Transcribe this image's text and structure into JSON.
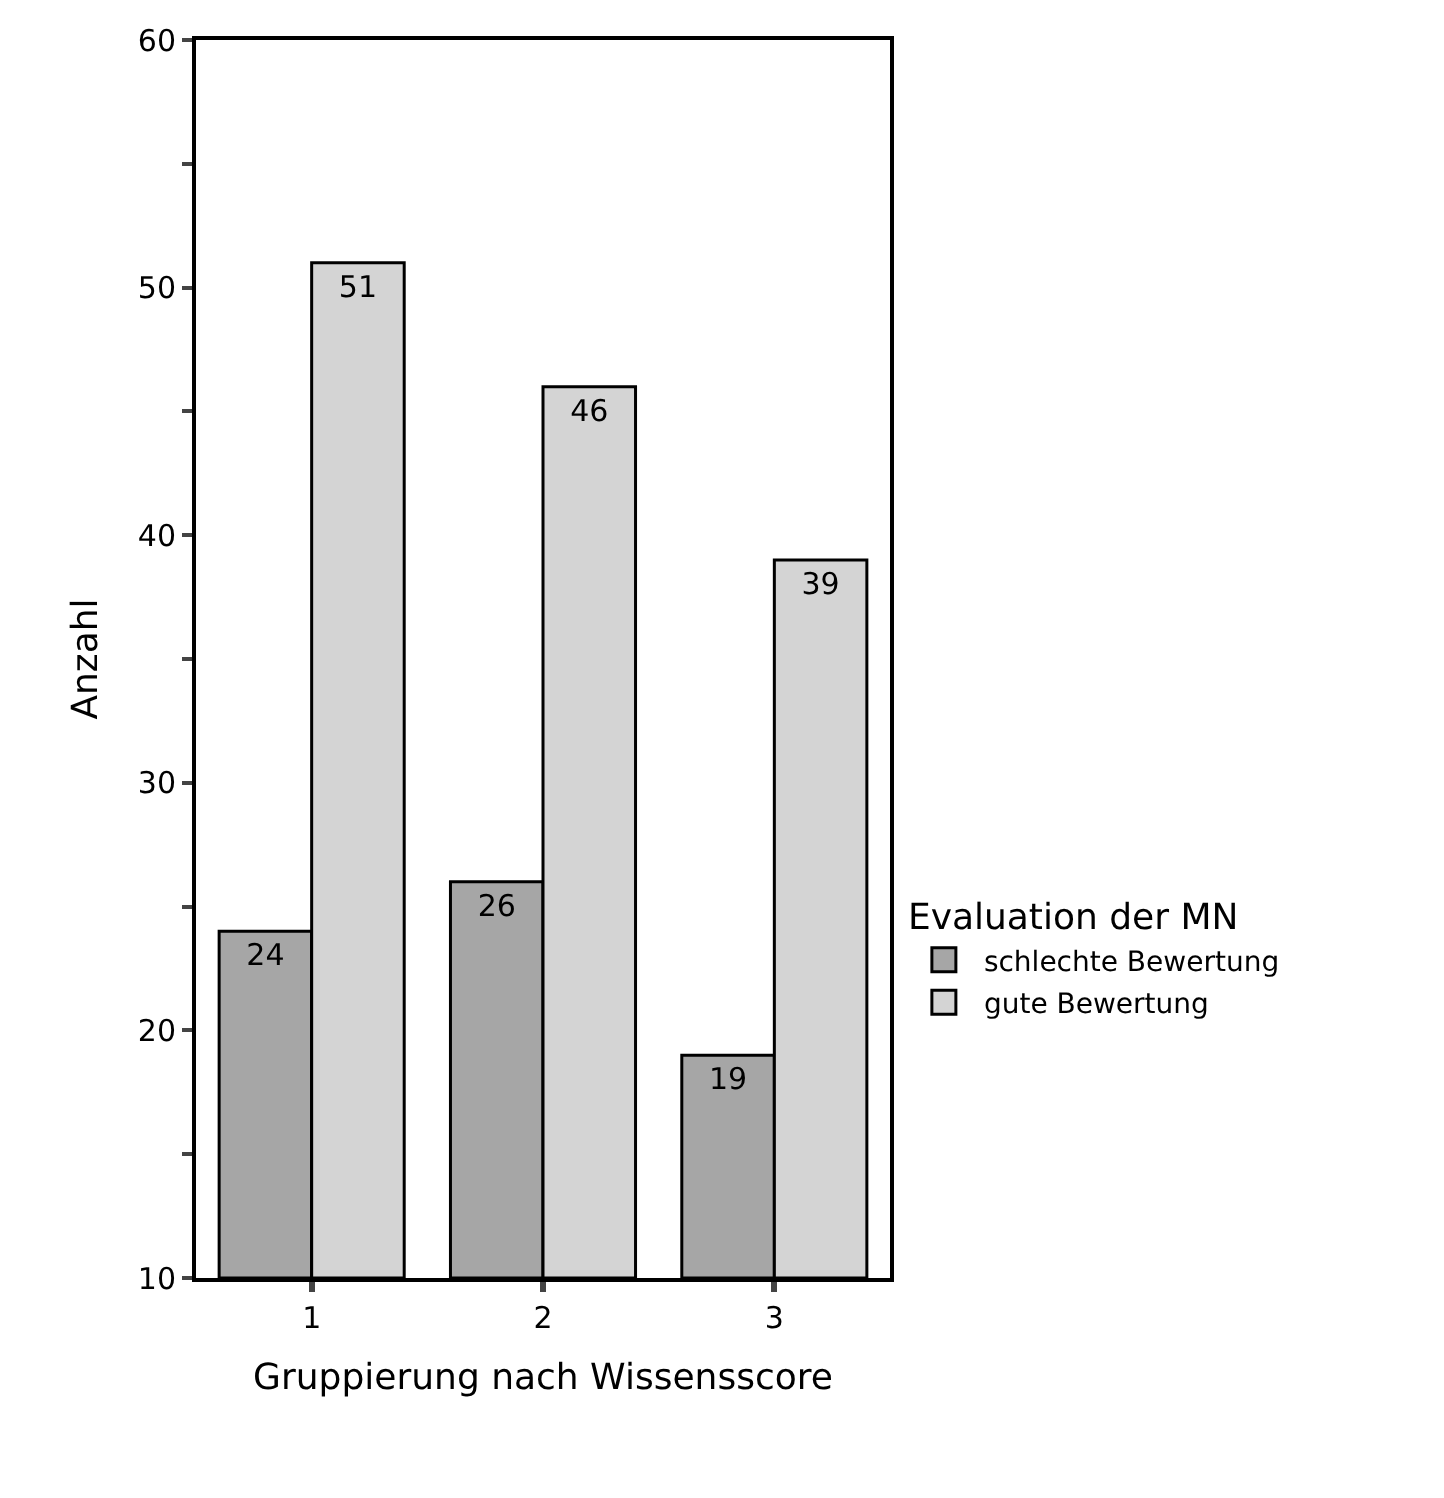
{
  "chart_data": {
    "type": "bar",
    "xlabel": "Gruppierung nach Wissensscore",
    "ylabel": "Anzahl",
    "legend_title": "Evaluation der MN",
    "categories": [
      "1",
      "2",
      "3"
    ],
    "series": [
      {
        "name": "schlechte Bewertung",
        "color": "#a6a6a6",
        "values": [
          24,
          26,
          19
        ]
      },
      {
        "name": "gute Bewertung",
        "color": "#d4d4d4",
        "values": [
          51,
          46,
          39
        ]
      }
    ],
    "ylim": [
      10,
      60
    ],
    "yticks": [
      10,
      {
        "value": 15,
        "label": null
      },
      20,
      {
        "value": 25,
        "label": null
      },
      30,
      {
        "value": 35,
        "label": null
      },
      40,
      {
        "value": 45,
        "label": null
      },
      50,
      {
        "value": 55,
        "label": null
      },
      60
    ],
    "data_labels": true,
    "legend": "right"
  }
}
